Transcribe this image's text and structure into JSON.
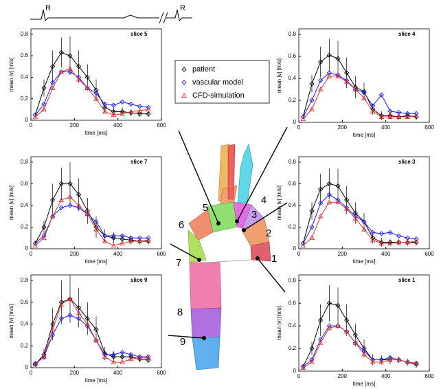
{
  "chart_data": [
    {
      "type": "line",
      "title": "slice 5",
      "x_label": "time [ms]",
      "y_label": "mean |v| [m/s]",
      "x": [
        20,
        60,
        100,
        140,
        180,
        220,
        260,
        300,
        340,
        380,
        420,
        460,
        500,
        540
      ],
      "series": [
        {
          "color": "#000000",
          "values": [
            0.05,
            0.3,
            0.5,
            0.63,
            0.6,
            0.5,
            0.4,
            0.28,
            0.12,
            0.08,
            0.08,
            0.07,
            0.06,
            0.06
          ],
          "errors": [
            0.02,
            0.08,
            0.15,
            0.14,
            0.18,
            0.15,
            0.12,
            0.1,
            0.05,
            0.04,
            0.04,
            0.03,
            0.03,
            0.03
          ]
        },
        {
          "color": "#1a1aff",
          "values": [
            0.05,
            0.15,
            0.35,
            0.45,
            0.45,
            0.4,
            0.3,
            0.25,
            0.15,
            0.14,
            0.17,
            0.15,
            0.13,
            0.12
          ]
        },
        {
          "color": "#e03030",
          "values": [
            0.03,
            0.1,
            0.3,
            0.45,
            0.48,
            0.38,
            0.3,
            0.2,
            0.08,
            0.05,
            0.06,
            0.08,
            0.09,
            0.1
          ]
        }
      ],
      "xlim": [
        0,
        600
      ],
      "xticks": [
        0,
        200,
        400,
        600
      ],
      "ylim": [
        0,
        0.85
      ],
      "yticks": [
        0,
        0.2,
        0.4,
        0.6,
        0.8
      ]
    },
    {
      "type": "line",
      "title": "slice 4",
      "x_label": "time [ms]",
      "y_label": "mean |v| [m/s]",
      "x": [
        20,
        60,
        100,
        140,
        180,
        220,
        260,
        300,
        340,
        380,
        420,
        460,
        500,
        540
      ],
      "series": [
        {
          "color": "#000000",
          "values": [
            0.05,
            0.35,
            0.55,
            0.61,
            0.58,
            0.45,
            0.32,
            0.28,
            0.12,
            0.06,
            0.06,
            0.05,
            0.06,
            0.05
          ],
          "errors": [
            0.02,
            0.08,
            0.14,
            0.15,
            0.16,
            0.14,
            0.1,
            0.08,
            0.05,
            0.04,
            0.03,
            0.03,
            0.03,
            0.03
          ]
        },
        {
          "color": "#1a1aff",
          "values": [
            0.05,
            0.2,
            0.38,
            0.45,
            0.43,
            0.38,
            0.3,
            0.27,
            0.15,
            0.25,
            0.1,
            0.09,
            0.08,
            0.08
          ]
        },
        {
          "color": "#e03030",
          "values": [
            0.03,
            0.12,
            0.3,
            0.42,
            0.42,
            0.37,
            0.3,
            0.22,
            0.1,
            0.05,
            0.05,
            0.05,
            0.05,
            0.06
          ]
        }
      ],
      "xlim": [
        0,
        600
      ],
      "xticks": [
        0,
        200,
        400,
        600
      ],
      "ylim": [
        0,
        0.85
      ],
      "yticks": [
        0,
        0.2,
        0.4,
        0.6,
        0.8
      ]
    },
    {
      "type": "line",
      "title": "slice 7",
      "x_label": "time [ms]",
      "y_label": "mean |v| [m/s]",
      "x": [
        20,
        60,
        100,
        140,
        180,
        220,
        260,
        300,
        340,
        380,
        420,
        460,
        500,
        540
      ],
      "series": [
        {
          "color": "#000000",
          "values": [
            0.05,
            0.2,
            0.45,
            0.6,
            0.6,
            0.5,
            0.35,
            0.2,
            0.12,
            0.1,
            0.09,
            0.08,
            0.07,
            0.07
          ],
          "errors": [
            0.02,
            0.06,
            0.15,
            0.15,
            0.2,
            0.15,
            0.12,
            0.1,
            0.06,
            0.05,
            0.04,
            0.04,
            0.03,
            0.03
          ]
        },
        {
          "color": "#1a1aff",
          "values": [
            0.05,
            0.12,
            0.3,
            0.38,
            0.4,
            0.38,
            0.32,
            0.25,
            0.12,
            0.12,
            0.12,
            0.1,
            0.1,
            0.1
          ]
        },
        {
          "color": "#e03030",
          "values": [
            0.03,
            0.1,
            0.3,
            0.45,
            0.48,
            0.4,
            0.32,
            0.18,
            0.07,
            0.03,
            0.05,
            0.07,
            0.07,
            0.08
          ]
        }
      ],
      "xlim": [
        0,
        600
      ],
      "xticks": [
        0,
        200,
        400,
        600
      ],
      "ylim": [
        0,
        0.85
      ],
      "yticks": [
        0,
        0.2,
        0.4,
        0.6,
        0.8
      ]
    },
    {
      "type": "line",
      "title": "slice 3",
      "x_label": "time [ms]",
      "y_label": "mean |v| [m/s]",
      "x": [
        20,
        60,
        100,
        140,
        180,
        220,
        260,
        300,
        340,
        380,
        420,
        460,
        500,
        540
      ],
      "series": [
        {
          "color": "#000000",
          "values": [
            0.05,
            0.35,
            0.55,
            0.6,
            0.58,
            0.45,
            0.33,
            0.25,
            0.1,
            0.06,
            0.06,
            0.06,
            0.06,
            0.06
          ],
          "errors": [
            0.02,
            0.08,
            0.14,
            0.14,
            0.16,
            0.13,
            0.1,
            0.08,
            0.05,
            0.04,
            0.03,
            0.03,
            0.03,
            0.03
          ]
        },
        {
          "color": "#1a1aff",
          "values": [
            0.05,
            0.2,
            0.42,
            0.5,
            0.45,
            0.38,
            0.3,
            0.25,
            0.15,
            0.14,
            0.15,
            0.12,
            0.1,
            0.09
          ]
        },
        {
          "color": "#e03030",
          "values": [
            0.03,
            0.1,
            0.3,
            0.43,
            0.43,
            0.37,
            0.28,
            0.18,
            0.08,
            0.05,
            0.05,
            0.06,
            0.06,
            0.07
          ]
        }
      ],
      "xlim": [
        0,
        600
      ],
      "xticks": [
        0,
        200,
        400,
        600
      ],
      "ylim": [
        0,
        0.85
      ],
      "yticks": [
        0,
        0.2,
        0.4,
        0.6,
        0.8
      ]
    },
    {
      "type": "line",
      "title": "slice 9",
      "x_label": "time [ms]",
      "y_label": "mean |v| [m/s]",
      "x": [
        20,
        60,
        100,
        140,
        180,
        220,
        260,
        300,
        340,
        380,
        420,
        460,
        500,
        540
      ],
      "series": [
        {
          "color": "#000000",
          "values": [
            0.03,
            0.12,
            0.4,
            0.6,
            0.63,
            0.55,
            0.45,
            0.35,
            0.13,
            0.1,
            0.1,
            0.1,
            0.08,
            0.07
          ],
          "errors": [
            0.02,
            0.05,
            0.15,
            0.2,
            0.22,
            0.18,
            0.15,
            0.12,
            0.06,
            0.05,
            0.04,
            0.04,
            0.03,
            0.03
          ]
        },
        {
          "color": "#1a1aff",
          "values": [
            0.04,
            0.1,
            0.3,
            0.45,
            0.48,
            0.45,
            0.38,
            0.25,
            0.12,
            0.12,
            0.14,
            0.12,
            0.1,
            0.1
          ]
        },
        {
          "color": "#e03030",
          "values": [
            0.03,
            0.1,
            0.35,
            0.58,
            0.63,
            0.5,
            0.4,
            0.25,
            0.1,
            0.05,
            0.05,
            0.08,
            0.09,
            0.09
          ]
        }
      ],
      "xlim": [
        0,
        600
      ],
      "xticks": [
        0,
        200,
        400,
        600
      ],
      "ylim": [
        0,
        0.85
      ],
      "yticks": [
        0,
        0.2,
        0.4,
        0.6,
        0.8
      ]
    },
    {
      "type": "line",
      "title": "slice 1",
      "x_label": "time [ms]",
      "y_label": "mean |v| [m/s]",
      "x": [
        20,
        60,
        100,
        140,
        180,
        220,
        260,
        300,
        340,
        380,
        420,
        460,
        500,
        540
      ],
      "series": [
        {
          "color": "#000000",
          "values": [
            0.04,
            0.2,
            0.45,
            0.6,
            0.58,
            0.45,
            0.32,
            0.2,
            0.1,
            0.1,
            0.1,
            0.1,
            0.08,
            0.06
          ],
          "errors": [
            0.02,
            0.06,
            0.14,
            0.16,
            0.16,
            0.14,
            0.1,
            0.08,
            0.05,
            0.04,
            0.04,
            0.03,
            0.03,
            0.03
          ]
        },
        {
          "color": "#1a1aff",
          "values": [
            0.04,
            0.1,
            0.28,
            0.4,
            0.4,
            0.35,
            0.25,
            0.18,
            0.1,
            0.1,
            0.12,
            0.1,
            0.08,
            0.07
          ]
        },
        {
          "color": "#e03030",
          "values": [
            0.03,
            0.08,
            0.25,
            0.38,
            0.4,
            0.35,
            0.25,
            0.15,
            0.08,
            0.08,
            0.1,
            0.1,
            0.08,
            0.07
          ]
        }
      ],
      "xlim": [
        0,
        600
      ],
      "xticks": [
        0,
        200,
        400,
        600
      ],
      "ylim": [
        0,
        0.85
      ],
      "yticks": [
        0,
        0.2,
        0.4,
        0.6,
        0.8
      ]
    }
  ],
  "legend": [
    {
      "name": "patient",
      "marker": "diamond"
    },
    {
      "name": "vascular model",
      "marker": "diamond"
    },
    {
      "name": "CFD-simulation",
      "marker": "triangle"
    }
  ],
  "diagram": {
    "ecg_labels": [
      "R",
      "R"
    ],
    "slice_labels": [
      "1",
      "2",
      "3",
      "4",
      "5",
      "6",
      "7",
      "8",
      "9"
    ]
  }
}
